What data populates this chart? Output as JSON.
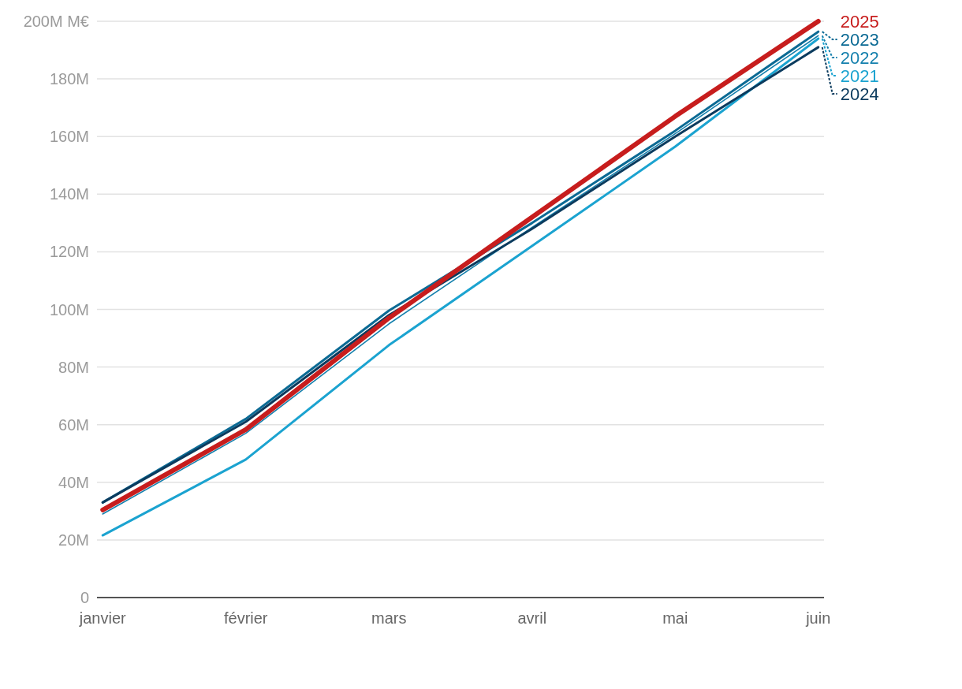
{
  "chart_data": {
    "type": "line",
    "categories": [
      "janvier",
      "février",
      "mars",
      "avril",
      "mai",
      "juin"
    ],
    "series": [
      {
        "name": "2021",
        "color": "#1ba3d0",
        "values": [
          21.6,
          47.9,
          87.6,
          122,
          156.5,
          194
        ]
      },
      {
        "name": "2022",
        "color": "#1580ad",
        "values": [
          29,
          57,
          95,
          128.5,
          161,
          195
        ]
      },
      {
        "name": "2023",
        "color": "#0b6a94",
        "values": [
          33,
          62,
          99.6,
          130,
          162,
          196.4
        ]
      },
      {
        "name": "2024",
        "color": "#0b3b5e",
        "values": [
          33,
          61,
          98,
          128,
          160,
          191
        ]
      },
      {
        "name": "2025",
        "color": "#c71d1d",
        "values": [
          30.4,
          58.3,
          97,
          132,
          167,
          200
        ]
      }
    ],
    "ylim": [
      0,
      200
    ],
    "legend": "right",
    "yticks": [
      0,
      {
        "value": 20,
        "label": "20M"
      },
      {
        "value": 40,
        "label": "40M"
      },
      {
        "value": 60,
        "label": "60M"
      },
      {
        "value": 80,
        "label": "80M"
      },
      {
        "value": 100,
        "label": "100M"
      },
      {
        "value": 120,
        "label": "120M"
      },
      {
        "value": 140,
        "label": "140M"
      },
      {
        "value": 160,
        "label": "160M"
      },
      {
        "value": 180,
        "label": "180M"
      },
      {
        "value": 200,
        "label": "200M M€"
      }
    ],
    "grid": "y",
    "marker": "none",
    "line_style": "solid"
  }
}
